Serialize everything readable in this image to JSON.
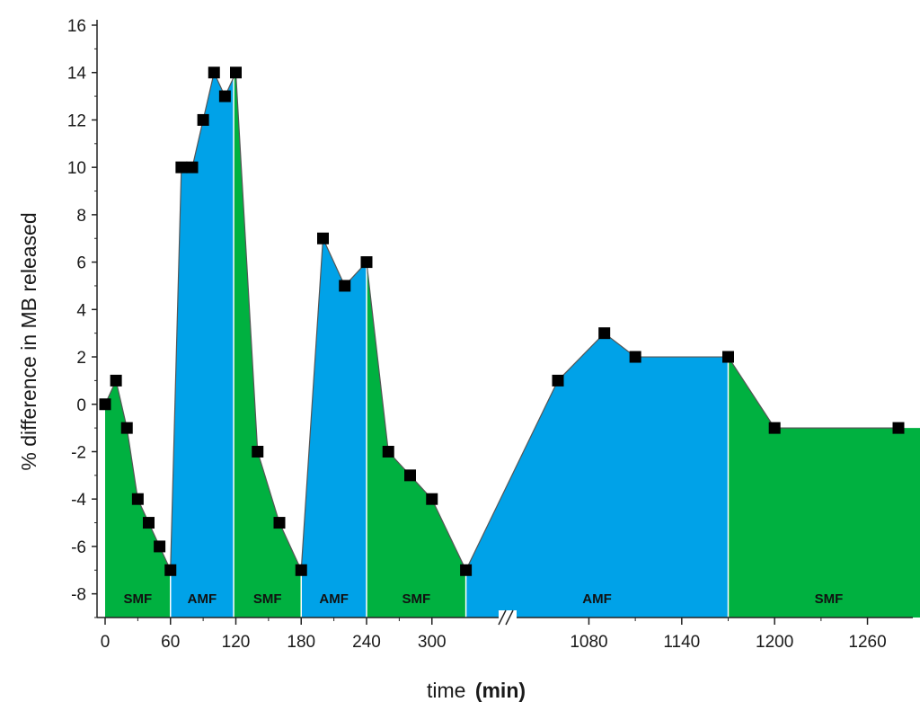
{
  "chart_data": {
    "type": "area",
    "xlabel": {
      "text": "time",
      "unit": "(min)"
    },
    "ylabel": "% difference in MB released",
    "ylim": [
      -9,
      16
    ],
    "yticks": [
      "16",
      "14",
      "12",
      "10",
      "8",
      "6",
      "4",
      "2",
      "0",
      "-2",
      "-4",
      "-6",
      "-8"
    ],
    "yticks_values": [
      16,
      14,
      12,
      10,
      8,
      6,
      4,
      2,
      0,
      -2,
      -4,
      -6,
      -8
    ],
    "xticks": [
      "0",
      "60",
      "120",
      "180",
      "240",
      "300",
      "1080",
      "1140",
      "1200",
      "1260"
    ],
    "xticks_values": [
      0,
      60,
      120,
      180,
      240,
      300,
      1080,
      1140,
      1200,
      1260
    ],
    "axis_break": {
      "after": 330,
      "before": 1040,
      "symbol": "//"
    },
    "field_colors": {
      "SMF": "#00b140",
      "AMF": "#00a2e8"
    },
    "regions": [
      {
        "label": "SMF",
        "x0": 0,
        "x1": 60
      },
      {
        "label": "AMF",
        "x0": 60,
        "x1": 118
      },
      {
        "label": "SMF",
        "x0": 118,
        "x1": 180
      },
      {
        "label": "AMF",
        "x0": 180,
        "x1": 240
      },
      {
        "label": "SMF",
        "x0": 240,
        "x1": 345
      },
      {
        "label": "AMF",
        "x0": 345,
        "x1": 1170
      },
      {
        "label": "SMF",
        "x0": 1170,
        "x1": 1300
      }
    ],
    "marker_color": "#000000",
    "series": [
      {
        "x": [
          0,
          10,
          20,
          30,
          40,
          50,
          60,
          70,
          80,
          90,
          100,
          110,
          120,
          140,
          160,
          180,
          200,
          220,
          240,
          260,
          280,
          300,
          345,
          1060,
          1090,
          1110,
          1170,
          1200,
          1280
        ],
        "y": [
          0,
          1,
          -1,
          -4,
          -5,
          -6,
          -7,
          10,
          10,
          12,
          14,
          13,
          14,
          -2,
          -5,
          -7,
          7,
          5,
          6,
          -2,
          -3,
          -4,
          -7,
          1,
          3,
          2,
          2,
          -1,
          -1
        ]
      }
    ]
  }
}
